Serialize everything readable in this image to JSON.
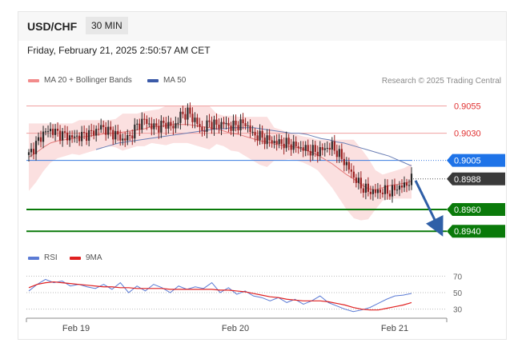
{
  "header": {
    "symbol": "USD/CHF",
    "timeframe": "30 MIN",
    "datetime": "Friday, February 21, 2025 2:50:57 AM CET"
  },
  "legend": {
    "ma_bb": "MA 20 + Bollinger Bands",
    "ma50": "MA 50",
    "credit": "Research © 2025 Trading Central",
    "rsi": "RSI",
    "ma9": "9MA"
  },
  "colors": {
    "ma_bb": "#f28b8b",
    "ma50": "#3b5aa8",
    "rsi": "#5b7bd5",
    "ma9": "#e02020",
    "support": "#0a7a0a",
    "pivot": "#1e73e8",
    "arrow": "#2f5fa7"
  },
  "chart_data": [
    {
      "type": "candlestick",
      "title": "",
      "ylim": [
        0.8935,
        0.9062
      ],
      "x_ticks": [
        "Feb 19",
        "Feb 20",
        "Feb 21"
      ],
      "price_levels": [
        {
          "label": "0.9055",
          "value": 0.9055,
          "style": "red-line"
        },
        {
          "label": "0.9030",
          "value": 0.903,
          "style": "red-line"
        },
        {
          "label": "0.9005",
          "value": 0.9005,
          "style": "pivot"
        },
        {
          "label": "0.8988",
          "value": 0.8988,
          "style": "last-price"
        },
        {
          "label": "0.8960",
          "value": 0.896,
          "style": "support"
        },
        {
          "label": "0.8940",
          "value": 0.894,
          "style": "support"
        }
      ],
      "forecast_arrow": {
        "from": 0.8988,
        "to": 0.8943
      },
      "series": [
        {
          "name": "Price",
          "values": [
            0.901,
            0.902,
            0.903,
            0.9033,
            0.903,
            0.9028,
            0.9026,
            0.9027,
            0.9029,
            0.9031,
            0.9036,
            0.9032,
            0.9029,
            0.9024,
            0.9027,
            0.9037,
            0.9042,
            0.9036,
            0.9036,
            0.9039,
            0.9035,
            0.9046,
            0.9049,
            0.9042,
            0.9032,
            0.904,
            0.9037,
            0.9039,
            0.9036,
            0.9038,
            0.9039,
            0.9029,
            0.9027,
            0.9024,
            0.9022,
            0.9021,
            0.902,
            0.9018,
            0.9016,
            0.9014,
            0.9013,
            0.9016,
            0.9018,
            0.901,
            0.9001,
            0.899,
            0.8981,
            0.8977,
            0.8976,
            0.8977,
            0.8976,
            0.898,
            0.8982,
            0.8987
          ]
        },
        {
          "name": "MA 20 + Bollinger Bands",
          "values": [
            0.9008,
            0.9012,
            0.9017,
            0.9021,
            0.9023,
            0.9024,
            0.9025,
            0.9026,
            0.9027,
            0.9028,
            0.9029,
            0.903,
            0.903,
            0.9031,
            0.9032,
            0.9033,
            0.9034,
            0.9036,
            0.9036,
            0.9037,
            0.9038,
            0.9038,
            0.9038,
            0.9037,
            0.9036,
            0.9035,
            0.9034,
            0.9032,
            0.903,
            0.9029,
            0.9027,
            0.9025,
            0.9023,
            0.9022,
            0.902,
            0.9019,
            0.9018,
            0.9017,
            0.9015,
            0.9013,
            0.901,
            0.9006,
            0.9002,
            0.8997,
            0.8992,
            0.8988,
            0.8983,
            0.8979,
            0.8978,
            0.898,
            0.8982,
            0.8983,
            0.8984,
            0.8986
          ]
        },
        {
          "name": "MA 50",
          "values": [
            0.9015,
            0.9017,
            0.9019,
            0.9021,
            0.9022,
            0.9023,
            0.9024,
            0.9025,
            0.9026,
            0.9027,
            0.9028,
            0.9029,
            0.903,
            0.9031,
            0.9032,
            0.9033,
            0.9034,
            0.9034,
            0.9035,
            0.9035,
            0.9035,
            0.9035,
            0.9034,
            0.9033,
            0.9032,
            0.9031,
            0.903,
            0.903,
            0.9029,
            0.9027,
            0.9025,
            0.9024,
            0.9022,
            0.9021,
            0.9019,
            0.9017,
            0.9015,
            0.9013,
            0.9011,
            0.9009,
            0.9006,
            0.9003,
            0.9
          ]
        }
      ]
    },
    {
      "type": "line",
      "title": "",
      "ylim": [
        20,
        80
      ],
      "y_ticks": [
        70,
        50,
        30
      ],
      "series": [
        {
          "name": "RSI",
          "values": [
            52,
            60,
            66,
            62,
            64,
            58,
            60,
            57,
            55,
            60,
            54,
            62,
            50,
            58,
            52,
            60,
            56,
            50,
            58,
            54,
            57,
            55,
            62,
            50,
            56,
            48,
            52,
            46,
            44,
            40,
            44,
            38,
            42,
            36,
            40,
            46,
            38,
            34,
            30,
            27,
            29,
            32,
            37,
            42,
            46,
            47,
            49
          ]
        },
        {
          "name": "9MA",
          "values": [
            56,
            60,
            62,
            63,
            62,
            61,
            60,
            59,
            58,
            57,
            57,
            56,
            56,
            55,
            55,
            55,
            55,
            54,
            54,
            54,
            54,
            54,
            54,
            53,
            53,
            52,
            51,
            49,
            47,
            45,
            44,
            42,
            41,
            40,
            40,
            40,
            39,
            37,
            35,
            32,
            30,
            29,
            29,
            31,
            33,
            35,
            38
          ]
        }
      ]
    }
  ]
}
